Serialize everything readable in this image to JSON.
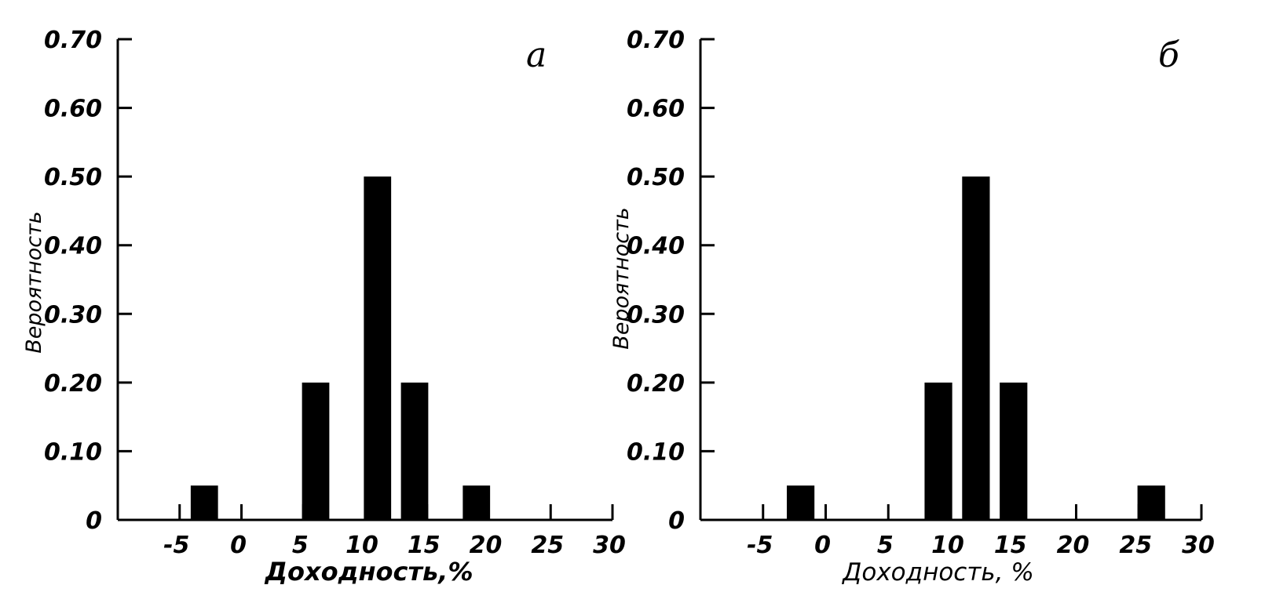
{
  "chart_data": [
    {
      "type": "bar",
      "panel_label": "а",
      "xlabel": "Доходность,%",
      "ylabel": "Вероятность",
      "xticks": [
        -5,
        0,
        5,
        10,
        15,
        20,
        25,
        30
      ],
      "xtick_labels": [
        "-5",
        "0",
        "5",
        "10",
        "15",
        "20",
        "25",
        "30"
      ],
      "yticks": [
        0,
        0.1,
        0.2,
        0.3,
        0.4,
        0.5,
        0.6,
        0.7
      ],
      "ytick_labels": [
        "0",
        "0.10",
        "0.20",
        "0.30",
        "0.40",
        "0.50",
        "0.60",
        "0.70"
      ],
      "xlim": [
        -10,
        30
      ],
      "ylim": [
        0,
        0.7
      ],
      "x": [
        -3,
        6,
        11,
        14,
        19
      ],
      "values": [
        0.05,
        0.2,
        0.5,
        0.2,
        0.05
      ],
      "grid": false
    },
    {
      "type": "bar",
      "panel_label": "б",
      "xlabel": "Доходность, %",
      "ylabel": "Вероятность",
      "xticks": [
        -5,
        0,
        5,
        10,
        15,
        20,
        25,
        30
      ],
      "xtick_labels": [
        "-5",
        "0",
        "5",
        "10",
        "15",
        "20",
        "25",
        "30"
      ],
      "yticks": [
        0,
        0.1,
        0.2,
        0.3,
        0.4,
        0.5,
        0.6,
        0.7
      ],
      "ytick_labels": [
        "0",
        "0.10",
        "0.20",
        "0.30",
        "0.40",
        "0.50",
        "0.60",
        "0.70"
      ],
      "xlim": [
        -10,
        30
      ],
      "ylim": [
        0,
        0.7
      ],
      "x": [
        -2,
        9,
        12,
        15,
        26
      ],
      "values": [
        0.05,
        0.2,
        0.5,
        0.2,
        0.05
      ],
      "grid": false
    }
  ]
}
